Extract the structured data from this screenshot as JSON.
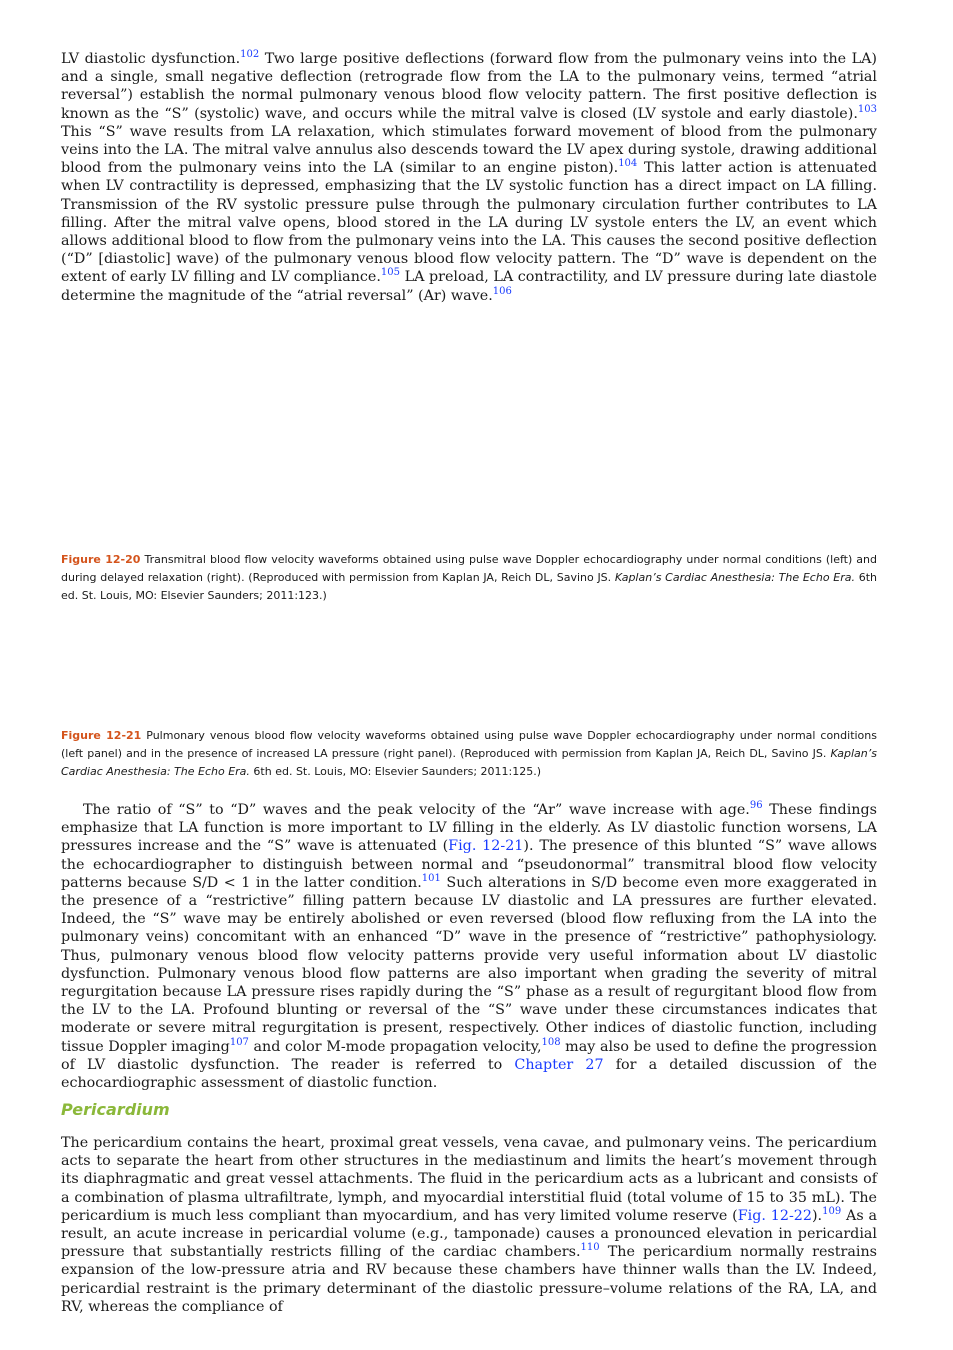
{
  "p1": {
    "t1": "LV diastolic dysfunction.",
    "s1": "102",
    "t2": " Two large positive deflections (forward flow from the pulmonary veins into the LA) and a single, small negative deflection (retrograde flow from the LA to the pulmonary veins, termed “atrial reversal”) establish the normal pulmonary venous blood flow velocity pattern. The first positive deflection is known as the “S” (systolic) wave, and occurs while the mitral valve is closed (LV systole and early diastole).",
    "s2": "103",
    "t3": " This “S” wave results from LA relaxation, which stimulates forward movement of blood from the pulmonary veins into the LA. The mitral valve annulus also descends toward the LV apex during systole, drawing additional blood from the pulmonary veins into the LA (similar to an engine piston).",
    "s3": "104",
    "t4": " This latter action is attenuated when LV contractility is depressed, emphasizing that the LV systolic function has a direct impact on LA filling. Transmission of the RV systolic pressure pulse through the pulmonary circulation further contributes to LA filling. After the mitral valve opens, blood stored in the LA during LV systole enters the LV, an event which allows additional blood to flow from the pulmonary veins into the LA. This causes the second positive deflection (“D” [diastolic] wave) of the pulmonary venous blood flow velocity pattern. The “D” wave is dependent on the extent of early LV filling and LV compliance.",
    "s4": "105",
    "t5": " LA preload, LA contractility, and LV pressure during late diastole determine the magnitude of the “atrial reversal” (Ar) wave.",
    "s5": "106"
  },
  "fig20": {
    "label": "Figure 12-20",
    "text": " Transmitral blood flow velocity waveforms obtained using pulse wave Doppler echocardiography under normal conditions (left) and during delayed relaxation (right). (Reproduced with permission from Kaplan JA, Reich DL, Savino JS. ",
    "italic": "Kaplan’s Cardiac Anesthesia: The Echo Era.",
    "tail": " 6th ed. St. Louis, MO: Elsevier Saunders; 2011:123.)"
  },
  "fig21": {
    "label": "Figure 12-21",
    "text": " Pulmonary venous blood flow velocity waveforms obtained using pulse wave Doppler echocardiography under normal conditions (left panel) and in the presence of increased LA pressure (right panel). (Reproduced with permission from Kaplan JA, Reich DL, Savino JS. ",
    "italic": "Kaplan’s Cardiac Anesthesia: The Echo Era.",
    "tail": " 6th ed. St. Louis, MO: Elsevier Saunders; 2011:125.)"
  },
  "p2": {
    "t1": "The ratio of “S” to “D” waves and the peak velocity of the “Ar” wave increase with age.",
    "s1": "96",
    "t2": " These findings emphasize that LA function is more important to LV filling in the elderly. As LV diastolic function worsens, LA pressures increase and the “S” wave is attenuated (",
    "r1": "Fig. 12-21",
    "t3": "). The presence of this blunted “S” wave allows the echocardiographer to distinguish between normal and “pseudonormal” transmitral blood flow velocity patterns because S/D < 1 in the latter condition.",
    "s2": "101",
    "t4": " Such alterations in S/D become even more exaggerated in the presence of a “restrictive” filling pattern because LV diastolic and LA pressures are further elevated. Indeed, the “S” wave may be entirely abolished or even reversed (blood flow refluxing from the LA into the pulmonary veins) concomitant with an enhanced “D” wave in the presence of “restrictive” pathophysiology. Thus, pulmonary venous blood flow velocity patterns provide very useful information about LV diastolic dysfunction. Pulmonary venous blood flow patterns are also important when grading the severity of mitral regurgitation because LA pressure rises rapidly during the “S” phase as a result of regurgitant blood flow from the LV to the LA. Profound blunting or reversal of the “S” wave under these circumstances indicates that moderate or severe mitral regurgitation is present, respectively. Other indices of diastolic function, including tissue Doppler imaging",
    "s3": "107",
    "t5": " and color M-mode propagation velocity,",
    "s4": "108",
    "t6": " may also be used to define the progression of LV diastolic dysfunction. The reader is referred to ",
    "r2": "Chapter 27",
    "t7": " for a detailed discussion of the echocardiographic assessment of diastolic function."
  },
  "section": {
    "title": "Pericardium"
  },
  "p3": {
    "t1": "The pericardium contains the heart, proximal great vessels, vena cavae, and pulmonary veins. The pericardium acts to separate the heart from other structures in the mediastinum and limits the heart’s movement through its diaphragmatic and great vessel attachments. The fluid in the pericardium acts as a lubricant and consists of a combination of plasma ultrafiltrate, lymph, and myocardial interstitial fluid (total volume of 15 to 35 mL). The pericardium is much less compliant than myocardium, and has very limited volume reserve (",
    "r1": "Fig. 12-22",
    "t2": ").",
    "s1": "109",
    "t3": " As a result, an acute increase in pericardial volume (e.g., tamponade) causes a pronounced elevation in pericardial pressure that substantially restricts filling of the cardiac chambers.",
    "s2": "110",
    "t4": " The pericardium normally restrains expansion of the low-pressure atria and RV because these chambers have thinner walls than the LV. Indeed, pericardial restraint is the primary determinant of the diastolic pressure–volume relations of the RA, LA, and RV, whereas the compliance of"
  }
}
